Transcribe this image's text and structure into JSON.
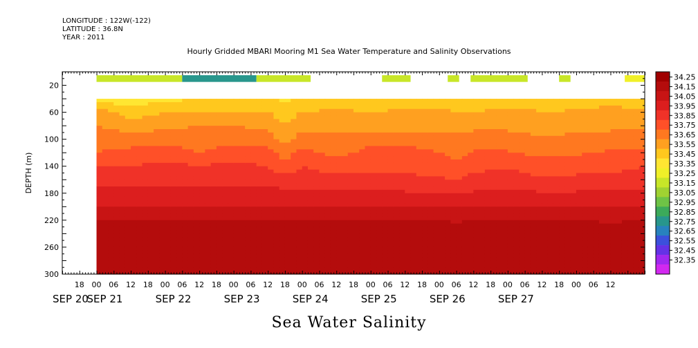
{
  "header": {
    "longitude": "LONGITUDE : 122W(-122)",
    "latitude": "LATITUDE : 36.8N",
    "year": "YEAR : 2011"
  },
  "chart_data": {
    "type": "heatmap",
    "title": "Hourly Gridded MBARI Mooring M1 Sea Water Temperature and Salinity Observations",
    "xlabel": "",
    "ylabel": "DEPTH (m)",
    "bottom_label": "Sea Water Salinity",
    "ylim": [
      300,
      0
    ],
    "xlim_hours": [
      -12,
      192
    ],
    "data_start_hour": 0,
    "y_ticks": [
      20,
      60,
      100,
      140,
      180,
      220,
      260,
      300
    ],
    "x_hour_ticks": [
      "18",
      "00",
      "06",
      "12",
      "18",
      "00",
      "06",
      "12",
      "18",
      "00",
      "06",
      "12",
      "18",
      "00",
      "06",
      "12",
      "18",
      "00",
      "06",
      "12",
      "18",
      "00",
      "06",
      "12",
      "18",
      "00",
      "06",
      "12",
      "18",
      "00",
      "06",
      "12"
    ],
    "x_date_labels": [
      "SEP 20",
      "SEP 21",
      "SEP 22",
      "SEP 23",
      "SEP 24",
      "SEP 25",
      "SEP 26",
      "SEP 27"
    ],
    "colorbar_levels": [
      "34.25",
      "34.15",
      "34.05",
      "33.95",
      "33.85",
      "33.75",
      "33.65",
      "33.55",
      "33.45",
      "33.35",
      "33.25",
      "33.15",
      "33.05",
      "32.95",
      "32.85",
      "32.75",
      "32.65",
      "32.55",
      "32.45",
      "32.35"
    ],
    "colorbar_colors": [
      "#a00000",
      "#b40c0c",
      "#c81414",
      "#dc1e1e",
      "#f03228",
      "#ff5028",
      "#ff7820",
      "#ffa020",
      "#ffc81e",
      "#ffe632",
      "#f0f028",
      "#c8e628",
      "#a0d232",
      "#6ec346",
      "#3caa5a",
      "#28968c",
      "#2882be",
      "#3c50dc",
      "#6432e6",
      "#a028f0",
      "#d228f0"
    ],
    "depths": [
      10,
      40,
      60,
      80,
      100,
      120,
      140,
      160,
      180,
      200,
      220,
      240,
      260,
      280,
      300
    ],
    "surface_salinity": [
      {
        "start_hour": 0,
        "end_hour": 30,
        "value": 33.2
      },
      {
        "start_hour": 30,
        "end_hour": 56,
        "value": 32.8
      },
      {
        "start_hour": 56,
        "end_hour": 75,
        "value": 33.15
      },
      {
        "start_hour": 100,
        "end_hour": 110,
        "value": 33.2
      },
      {
        "start_hour": 123,
        "end_hour": 127,
        "value": 33.2
      },
      {
        "start_hour": 131,
        "end_hour": 151,
        "value": 33.2
      },
      {
        "start_hour": 162,
        "end_hour": 166,
        "value": 33.2
      },
      {
        "start_hour": 185,
        "end_hour": 200,
        "value": 33.3
      }
    ],
    "profiles": [
      {
        "hour": 0,
        "values": [
          33.4,
          33.6,
          33.65,
          33.7,
          33.75,
          33.85,
          33.9,
          34.0,
          34.05,
          34.15,
          34.2,
          34.22,
          34.23,
          34.23
        ]
      },
      {
        "hour": 12,
        "values": [
          33.38,
          33.5,
          33.6,
          33.7,
          33.78,
          33.85,
          33.9,
          33.98,
          34.05,
          34.15,
          34.2,
          34.25,
          34.24,
          34.22
        ]
      },
      {
        "hour": 24,
        "values": [
          33.42,
          33.55,
          33.62,
          33.72,
          33.8,
          33.88,
          33.92,
          34.0,
          34.05,
          34.15,
          34.2,
          34.22,
          34.23,
          34.24
        ]
      },
      {
        "hour": 36,
        "values": [
          33.45,
          33.55,
          33.65,
          33.7,
          33.75,
          33.85,
          33.9,
          34.0,
          34.05,
          34.15,
          34.2,
          34.22,
          34.23,
          34.23
        ]
      },
      {
        "hour": 48,
        "values": [
          33.45,
          33.55,
          33.65,
          33.72,
          33.8,
          33.88,
          33.92,
          34.0,
          34.05,
          34.15,
          34.2,
          34.22,
          34.23,
          34.23
        ]
      },
      {
        "hour": 60,
        "values": [
          33.45,
          33.55,
          33.62,
          33.7,
          33.78,
          33.85,
          33.9,
          34.0,
          34.05,
          34.15,
          34.2,
          34.22,
          34.23,
          34.22
        ]
      },
      {
        "hour": 66,
        "values": [
          33.43,
          33.5,
          33.55,
          33.6,
          33.7,
          33.8,
          33.88,
          33.98,
          34.05,
          34.15,
          34.2,
          34.22,
          34.23,
          34.22
        ]
      },
      {
        "hour": 72,
        "values": [
          33.5,
          33.55,
          33.62,
          33.7,
          33.78,
          33.85,
          33.9,
          33.98,
          34.05,
          34.15,
          34.2,
          34.22,
          34.23,
          34.22
        ]
      },
      {
        "hour": 84,
        "values": [
          33.52,
          33.56,
          33.62,
          33.68,
          33.72,
          33.8,
          33.88,
          33.96,
          34.05,
          34.15,
          34.2,
          34.22,
          34.22,
          34.22
        ]
      },
      {
        "hour": 96,
        "values": [
          33.52,
          33.55,
          33.6,
          33.72,
          33.78,
          33.82,
          33.88,
          33.96,
          34.05,
          34.15,
          34.2,
          34.22,
          34.22,
          34.22
        ]
      },
      {
        "hour": 108,
        "values": [
          33.52,
          33.56,
          33.6,
          33.72,
          33.78,
          33.82,
          33.88,
          33.96,
          34.05,
          34.15,
          34.2,
          34.22,
          34.22,
          34.22
        ]
      },
      {
        "hour": 120,
        "values": [
          33.5,
          33.58,
          33.62,
          33.7,
          33.75,
          33.8,
          33.86,
          33.95,
          34.05,
          34.15,
          34.2,
          34.22,
          34.22,
          34.22
        ]
      },
      {
        "hour": 126,
        "values": [
          33.48,
          33.55,
          33.6,
          33.68,
          33.72,
          33.78,
          33.85,
          33.95,
          34.05,
          34.14,
          34.18,
          34.2,
          34.22,
          34.22
        ]
      },
      {
        "hour": 132,
        "values": [
          33.45,
          33.55,
          33.62,
          33.7,
          33.76,
          33.82,
          33.88,
          33.96,
          34.05,
          34.15,
          34.2,
          34.22,
          34.22,
          34.22
        ]
      },
      {
        "hour": 144,
        "values": [
          33.5,
          33.58,
          33.62,
          33.7,
          33.76,
          33.84,
          33.9,
          33.98,
          34.06,
          34.16,
          34.22,
          34.25,
          34.25,
          34.24
        ]
      },
      {
        "hour": 156,
        "values": [
          33.5,
          33.55,
          33.6,
          33.66,
          33.72,
          33.8,
          33.86,
          33.96,
          34.05,
          34.15,
          34.2,
          34.24,
          34.25,
          34.24
        ]
      },
      {
        "hour": 168,
        "values": [
          33.5,
          33.56,
          33.62,
          33.68,
          33.74,
          33.8,
          33.88,
          33.96,
          34.05,
          34.15,
          34.2,
          34.22,
          34.23,
          34.23
        ]
      },
      {
        "hour": 180,
        "values": [
          33.52,
          33.58,
          33.62,
          33.7,
          33.76,
          33.82,
          33.88,
          33.96,
          34.05,
          34.14,
          34.2,
          34.22,
          34.22,
          34.22
        ]
      },
      {
        "hour": 192,
        "values": [
          33.5,
          33.56,
          33.62,
          33.7,
          33.78,
          33.85,
          33.9,
          33.98,
          34.05,
          34.15,
          34.2,
          34.22,
          34.23,
          34.23
        ]
      }
    ]
  }
}
